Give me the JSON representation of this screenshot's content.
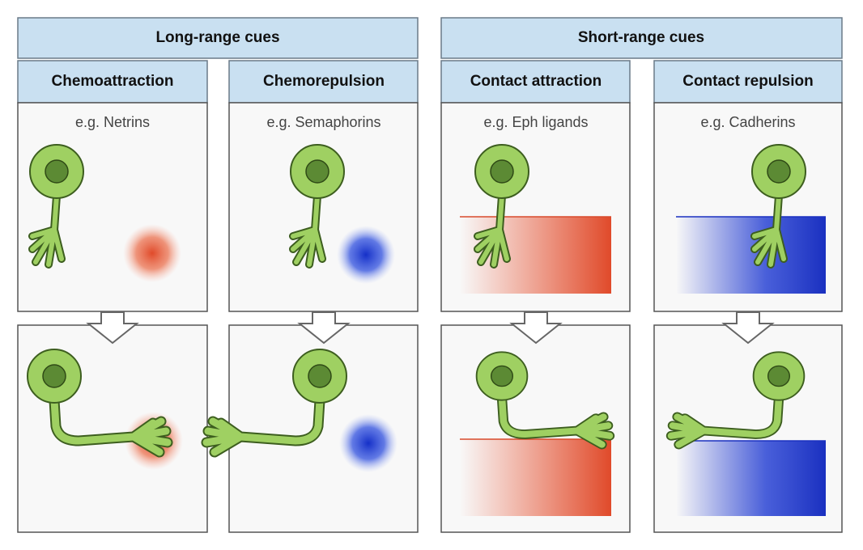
{
  "groups": [
    {
      "title": "Long-range cues",
      "columns": [
        {
          "title": "Chemoattraction",
          "example": "e.g. Netrins"
        },
        {
          "title": "Chemorepulsion",
          "example": "e.g. Semaphorins"
        }
      ]
    },
    {
      "title": "Short-range cues",
      "columns": [
        {
          "title": "Contact attraction",
          "example": "e.g. Eph ligands"
        },
        {
          "title": "Contact repulsion",
          "example": "e.g. Cadherins"
        }
      ]
    }
  ]
}
